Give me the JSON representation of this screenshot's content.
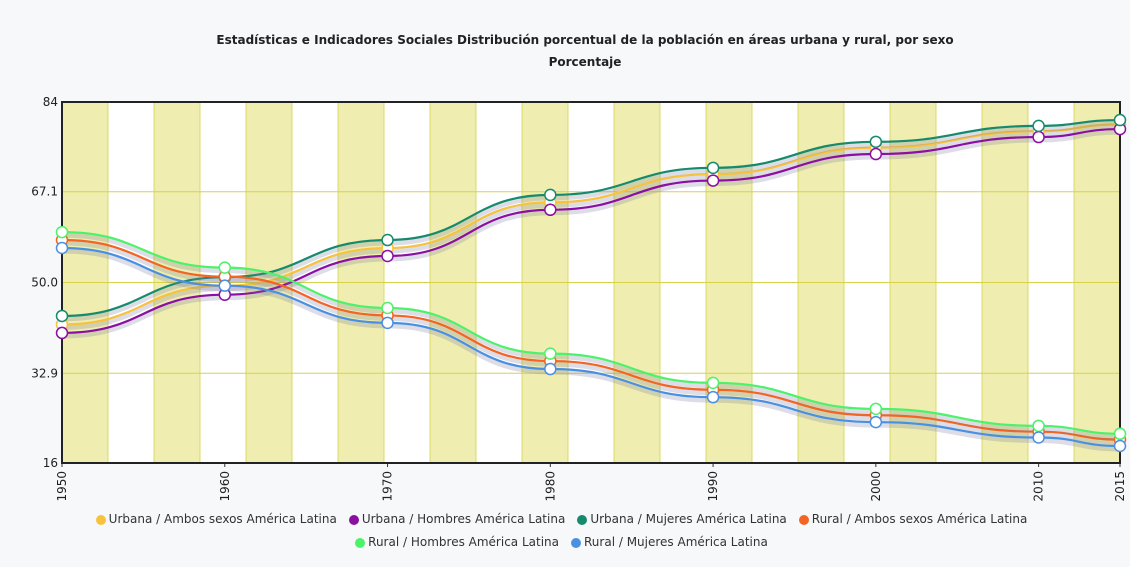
{
  "chart_data": {
    "type": "line",
    "title": "Estadísticas e Indicadores Sociales Distribución porcentual de la población en áreas urbana y rural, por sexo",
    "subtitle": "Porcentaje",
    "x": [
      1950,
      1960,
      1970,
      1980,
      1990,
      2000,
      2010,
      2015
    ],
    "xlim": [
      1950,
      2015
    ],
    "xticks": [
      1950,
      1960,
      1970,
      1980,
      1990,
      2000,
      2010,
      2015
    ],
    "ylim": [
      16,
      84
    ],
    "yticks": [
      16,
      32.9,
      {
        "value": 50,
        "label": "50.0"
      },
      67.1,
      84
    ],
    "grid": true,
    "legend": "bottom",
    "series": [
      {
        "name": "Urbana / Ambos sexos América Latina",
        "color": "#f7c23c",
        "values": [
          42.1,
          49.4,
          56.5,
          65.1,
          70.4,
          75.4,
          78.5,
          79.8
        ]
      },
      {
        "name": "Urbana / Hombres América Latina",
        "color": "#8b0fa0",
        "values": [
          40.5,
          47.7,
          55,
          63.7,
          69.2,
          74.2,
          77.4,
          78.9
        ]
      },
      {
        "name": "Urbana / Mujeres América Latina",
        "color": "#168a6c",
        "values": [
          43.7,
          51,
          58,
          66.5,
          71.6,
          76.5,
          79.5,
          80.6
        ]
      },
      {
        "name": "Rural / Ambos sexos América Latina",
        "color": "#f26522",
        "values": [
          58,
          51.1,
          43.8,
          35.2,
          29.8,
          25,
          21.9,
          20.4
        ]
      },
      {
        "name": "Rural / Hombres América Latina",
        "color": "#4cf26a",
        "values": [
          59.5,
          52.8,
          45.2,
          36.6,
          31.1,
          26.2,
          23,
          21.5
        ]
      },
      {
        "name": "Rural / Mujeres América Latina",
        "color": "#4a90e2",
        "values": [
          56.5,
          49.4,
          42.4,
          33.7,
          28.4,
          23.7,
          20.8,
          19.2
        ]
      }
    ]
  }
}
